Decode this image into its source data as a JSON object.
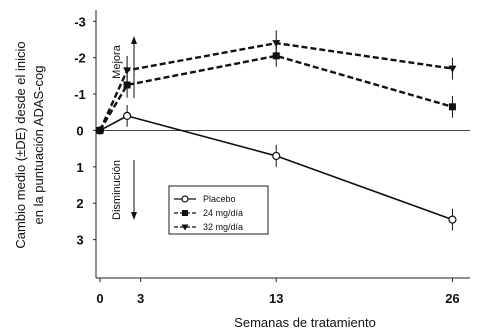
{
  "chart_data": {
    "type": "line",
    "xlabel": "Semanas de tratamiento",
    "ylabel": "Cambio medio (±DE) desde el inicio en la puntuación ADAS-cog",
    "ylabel_lines": [
      "Cambio medio (±DE) desde el inicio",
      "en la puntuación ADAS-cog"
    ],
    "x_ticks": [
      0,
      3,
      13,
      26
    ],
    "y_ticks": [
      {
        "value": -3,
        "label": "-3"
      },
      {
        "value": -2,
        "label": "-2"
      },
      {
        "value": -1,
        "label": "-1"
      },
      {
        "value": 0,
        "label": "0"
      },
      {
        "value": 1,
        "label": "1"
      },
      {
        "value": 2,
        "label": "2"
      },
      {
        "value": 3,
        "label": "3"
      }
    ],
    "xlim": [
      0,
      27
    ],
    "ylim": [
      -3.2,
      4.0
    ],
    "y_inverted": true,
    "reference_line": 0,
    "annotations": {
      "improve": "Mejora",
      "decline": "Disminución"
    },
    "legend_position": "center-left",
    "series": [
      {
        "name": "Placebo",
        "marker": "circle-open",
        "dash": "solid",
        "x": [
          0,
          2,
          13,
          26
        ],
        "y": [
          0.0,
          -0.4,
          0.7,
          2.45
        ],
        "err": [
          0.1,
          0.3,
          0.3,
          0.3
        ]
      },
      {
        "name": "24 mg/día",
        "marker": "square",
        "dash": "dashed",
        "x": [
          0,
          2,
          13,
          26
        ],
        "y": [
          0.0,
          -1.25,
          -2.05,
          -0.65
        ],
        "err": [
          0.1,
          0.35,
          0.3,
          0.3
        ]
      },
      {
        "name": "32 mg/día",
        "marker": "triangle-down",
        "dash": "dashed",
        "x": [
          0,
          2,
          13,
          26
        ],
        "y": [
          0.0,
          -1.65,
          -2.4,
          -1.7
        ],
        "err": [
          0.1,
          0.4,
          0.35,
          0.3
        ]
      }
    ]
  }
}
